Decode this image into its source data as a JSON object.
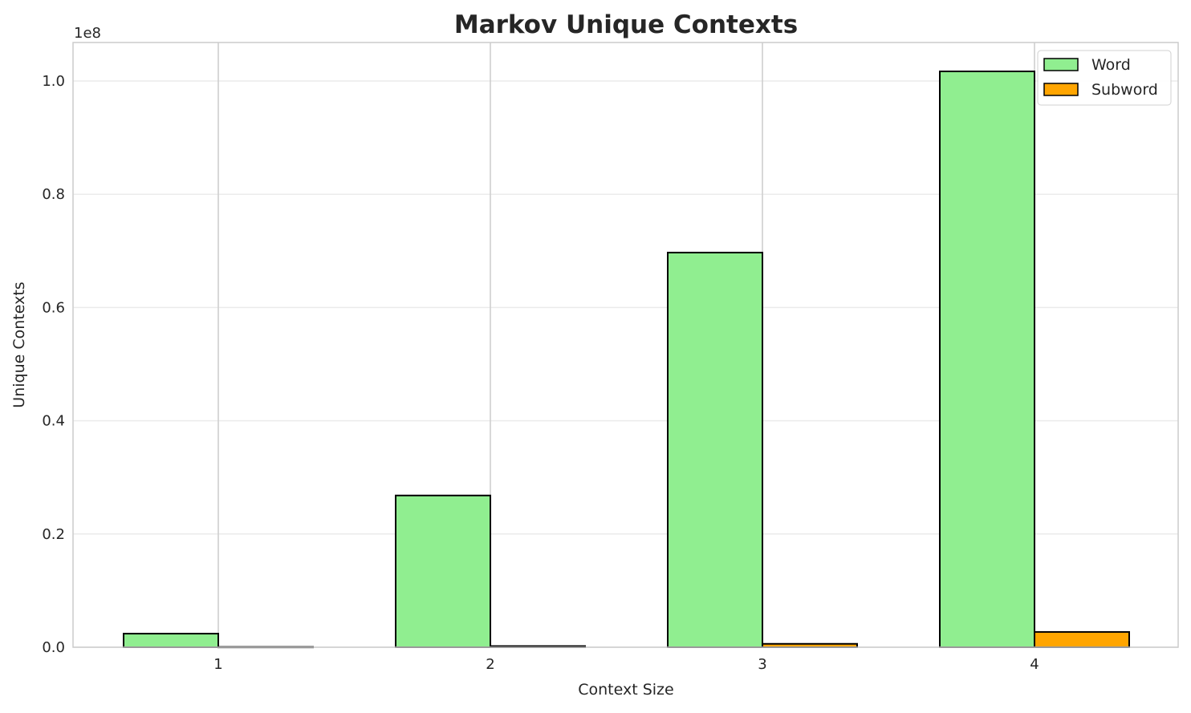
{
  "chart_data": {
    "type": "bar",
    "title": "Markov Unique Contexts",
    "xlabel": "Context Size",
    "ylabel": "Unique Contexts",
    "y_offset_label": "1e8",
    "categories": [
      "1",
      "2",
      "3",
      "4"
    ],
    "series": [
      {
        "name": "Word",
        "color": "#90ee90",
        "values": [
          2400000,
          26800000,
          69700000,
          101700000
        ]
      },
      {
        "name": "Subword",
        "color": "#ffa500",
        "values": [
          50000,
          200000,
          600000,
          2700000
        ]
      }
    ],
    "ylim": [
      0,
      106800000
    ],
    "yticks": [
      0,
      0.2,
      0.4,
      0.6,
      0.8,
      1.0
    ],
    "ytick_labels": [
      "0.0",
      "0.2",
      "0.4",
      "0.6",
      "0.8",
      "1.0"
    ],
    "grid": true,
    "legend_position": "top-right"
  }
}
